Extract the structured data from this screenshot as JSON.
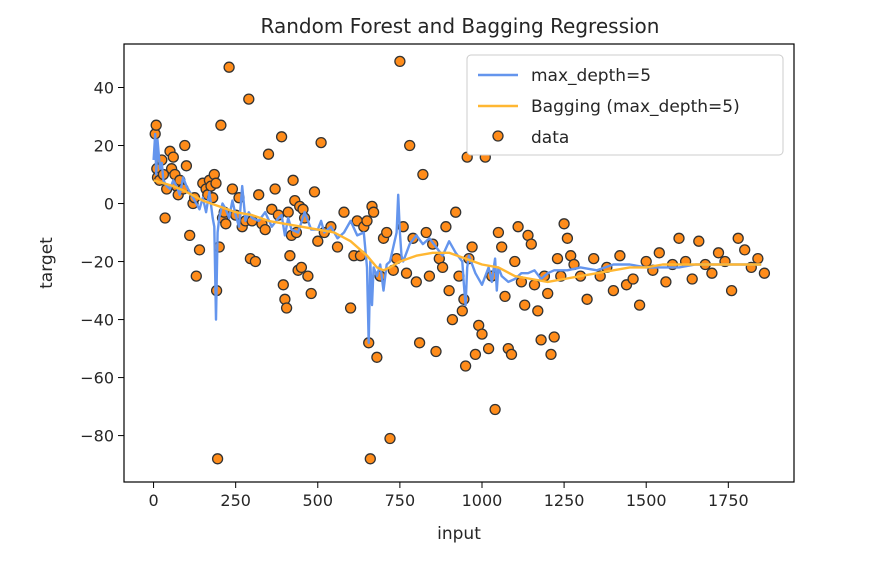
{
  "chart_data": {
    "type": "scatter",
    "title": "Random Forest and Bagging Regression",
    "xlabel": "input",
    "ylabel": "target",
    "xlim": [
      -90,
      1950
    ],
    "ylim": [
      -96,
      55
    ],
    "xticks": [
      0,
      250,
      500,
      750,
      1000,
      1250,
      1500,
      1750
    ],
    "yticks": [
      -80,
      -60,
      -40,
      -20,
      0,
      20,
      40
    ],
    "grid": false,
    "legend": {
      "placement": "top-right",
      "entries": [
        "max_depth=5",
        "Bagging (max_depth=5)",
        "data"
      ]
    },
    "series": [
      {
        "name": "max_depth=5",
        "kind": "line",
        "color": "#6495ED",
        "x": [
          0,
          5,
          8,
          12,
          15,
          20,
          25,
          30,
          40,
          50,
          60,
          70,
          80,
          90,
          100,
          110,
          120,
          130,
          140,
          150,
          160,
          170,
          180,
          185,
          190,
          195,
          200,
          210,
          220,
          230,
          240,
          250,
          260,
          270,
          280,
          290,
          300,
          320,
          340,
          360,
          380,
          390,
          400,
          410,
          420,
          440,
          460,
          480,
          500,
          510,
          520,
          540,
          560,
          580,
          600,
          620,
          640,
          650,
          655,
          660,
          665,
          670,
          680,
          690,
          700,
          710,
          720,
          730,
          740,
          745,
          750,
          755,
          760,
          780,
          800,
          820,
          840,
          860,
          880,
          900,
          920,
          940,
          945,
          950,
          955,
          960,
          980,
          1000,
          1020,
          1030,
          1040,
          1045,
          1050,
          1060,
          1080,
          1100,
          1120,
          1140,
          1160,
          1180,
          1200,
          1220,
          1240,
          1260,
          1300,
          1350,
          1400,
          1450,
          1500,
          1550,
          1600,
          1650,
          1700,
          1750,
          1800,
          1850
        ],
        "values": [
          15,
          24,
          10,
          22,
          18,
          12,
          14,
          8,
          6,
          5,
          8,
          6,
          3,
          9,
          6,
          4,
          2,
          0,
          -2,
          2,
          -3,
          4,
          -5,
          -8,
          -40,
          -10,
          -5,
          0,
          -2,
          -5,
          1,
          -4,
          -8,
          6,
          -6,
          -3,
          -5,
          -6,
          -3,
          -8,
          -5,
          -4,
          -11,
          -5,
          -9,
          -10,
          -3,
          -9,
          -9,
          -6,
          -10,
          -8,
          -12,
          -10,
          -6,
          -11,
          -10,
          -22,
          -48,
          -20,
          -35,
          -22,
          -25,
          -21,
          -30,
          -21,
          -20,
          -15,
          -10,
          3,
          -10,
          -18,
          -20,
          -14,
          -11,
          -14,
          -12,
          -15,
          -18,
          -13,
          -17,
          -20,
          -28,
          -35,
          -22,
          -18,
          -24,
          -28,
          -22,
          -27,
          -19,
          -30,
          -22,
          -25,
          -27,
          -26,
          -24,
          -24,
          -23,
          -26,
          -24,
          -23,
          -23,
          -23,
          -22,
          -23,
          -21,
          -21,
          -22,
          -22,
          -22,
          -21,
          -21,
          -21,
          -21,
          -21
        ]
      },
      {
        "name": "Bagging (max_depth=5)",
        "kind": "line",
        "color": "#FFB732",
        "x": [
          0,
          30,
          60,
          100,
          150,
          200,
          250,
          300,
          350,
          400,
          450,
          500,
          550,
          600,
          650,
          680,
          700,
          720,
          750,
          800,
          850,
          900,
          950,
          1000,
          1050,
          1100,
          1150,
          1200,
          1250,
          1300,
          1350,
          1400,
          1450,
          1500,
          1550,
          1600,
          1650,
          1700,
          1750,
          1800,
          1850
        ],
        "values": [
          8,
          7,
          6,
          4,
          1,
          -1,
          -3,
          -4,
          -6,
          -7,
          -8,
          -9,
          -10,
          -13,
          -18,
          -22,
          -23,
          -22,
          -20,
          -18,
          -17,
          -17,
          -19,
          -21,
          -22,
          -25,
          -26,
          -27,
          -26,
          -25,
          -24,
          -23,
          -22,
          -22,
          -21,
          -21,
          -21,
          -21,
          -21,
          -21,
          -21
        ]
      },
      {
        "name": "data",
        "kind": "scatter",
        "color": "#FF8C1A",
        "edge_color": "#333333",
        "points": [
          [
            5,
            24
          ],
          [
            8,
            27
          ],
          [
            10,
            12
          ],
          [
            12,
            9
          ],
          [
            18,
            8
          ],
          [
            25,
            15
          ],
          [
            30,
            10
          ],
          [
            35,
            -5
          ],
          [
            40,
            5
          ],
          [
            50,
            18
          ],
          [
            55,
            12
          ],
          [
            60,
            16
          ],
          [
            65,
            10
          ],
          [
            70,
            6
          ],
          [
            75,
            3
          ],
          [
            80,
            8
          ],
          [
            90,
            5
          ],
          [
            95,
            20
          ],
          [
            100,
            13
          ],
          [
            110,
            -11
          ],
          [
            120,
            0
          ],
          [
            125,
            2
          ],
          [
            130,
            -25
          ],
          [
            140,
            -16
          ],
          [
            150,
            7
          ],
          [
            160,
            5
          ],
          [
            165,
            3
          ],
          [
            170,
            8
          ],
          [
            175,
            6
          ],
          [
            180,
            2
          ],
          [
            185,
            10
          ],
          [
            190,
            7
          ],
          [
            192,
            -30
          ],
          [
            195,
            -88
          ],
          [
            200,
            -15
          ],
          [
            205,
            27
          ],
          [
            210,
            -5
          ],
          [
            215,
            -3
          ],
          [
            220,
            -7
          ],
          [
            230,
            47
          ],
          [
            240,
            5
          ],
          [
            250,
            -4
          ],
          [
            260,
            2
          ],
          [
            270,
            -8
          ],
          [
            280,
            -6
          ],
          [
            290,
            36
          ],
          [
            295,
            -19
          ],
          [
            300,
            -6
          ],
          [
            310,
            -20
          ],
          [
            320,
            3
          ],
          [
            330,
            -7
          ],
          [
            340,
            -9
          ],
          [
            350,
            17
          ],
          [
            360,
            -2
          ],
          [
            370,
            5
          ],
          [
            380,
            -4
          ],
          [
            390,
            23
          ],
          [
            395,
            -28
          ],
          [
            400,
            -33
          ],
          [
            405,
            -36
          ],
          [
            410,
            -3
          ],
          [
            415,
            -18
          ],
          [
            420,
            -11
          ],
          [
            425,
            8
          ],
          [
            430,
            1
          ],
          [
            435,
            -10
          ],
          [
            440,
            -23
          ],
          [
            445,
            -1
          ],
          [
            450,
            -22
          ],
          [
            455,
            -2
          ],
          [
            460,
            -5
          ],
          [
            470,
            -25
          ],
          [
            480,
            -31
          ],
          [
            490,
            4
          ],
          [
            500,
            -13
          ],
          [
            510,
            21
          ],
          [
            520,
            -10
          ],
          [
            540,
            -8
          ],
          [
            560,
            -15
          ],
          [
            580,
            -3
          ],
          [
            600,
            -36
          ],
          [
            610,
            -18
          ],
          [
            620,
            -6
          ],
          [
            630,
            -18
          ],
          [
            640,
            -8
          ],
          [
            650,
            -6
          ],
          [
            655,
            -48
          ],
          [
            660,
            -88
          ],
          [
            665,
            -1
          ],
          [
            670,
            -3
          ],
          [
            680,
            -53
          ],
          [
            690,
            -25
          ],
          [
            700,
            -12
          ],
          [
            710,
            -10
          ],
          [
            720,
            -81
          ],
          [
            730,
            -23
          ],
          [
            740,
            -19
          ],
          [
            750,
            49
          ],
          [
            760,
            -8
          ],
          [
            770,
            -24
          ],
          [
            780,
            20
          ],
          [
            790,
            -12
          ],
          [
            800,
            -27
          ],
          [
            810,
            -48
          ],
          [
            820,
            10
          ],
          [
            830,
            -10
          ],
          [
            840,
            -25
          ],
          [
            850,
            -14
          ],
          [
            860,
            -51
          ],
          [
            870,
            -19
          ],
          [
            880,
            -22
          ],
          [
            890,
            -8
          ],
          [
            900,
            -30
          ],
          [
            910,
            -40
          ],
          [
            920,
            -3
          ],
          [
            930,
            -25
          ],
          [
            940,
            -37
          ],
          [
            945,
            -33
          ],
          [
            950,
            -56
          ],
          [
            955,
            16
          ],
          [
            960,
            -19
          ],
          [
            970,
            -15
          ],
          [
            980,
            -52
          ],
          [
            990,
            -42
          ],
          [
            1000,
            -45
          ],
          [
            1010,
            16
          ],
          [
            1020,
            -50
          ],
          [
            1030,
            -25
          ],
          [
            1040,
            -71
          ],
          [
            1050,
            -10
          ],
          [
            1060,
            -15
          ],
          [
            1070,
            -32
          ],
          [
            1080,
            -50
          ],
          [
            1090,
            -52
          ],
          [
            1100,
            -20
          ],
          [
            1110,
            -8
          ],
          [
            1120,
            -27
          ],
          [
            1130,
            -35
          ],
          [
            1140,
            -11
          ],
          [
            1150,
            -14
          ],
          [
            1160,
            -28
          ],
          [
            1170,
            -37
          ],
          [
            1180,
            -47
          ],
          [
            1190,
            -25
          ],
          [
            1200,
            -31
          ],
          [
            1210,
            -52
          ],
          [
            1220,
            -46
          ],
          [
            1230,
            -19
          ],
          [
            1240,
            -25
          ],
          [
            1250,
            -7
          ],
          [
            1260,
            -12
          ],
          [
            1270,
            -18
          ],
          [
            1280,
            -21
          ],
          [
            1300,
            -25
          ],
          [
            1320,
            -33
          ],
          [
            1340,
            -19
          ],
          [
            1360,
            -25
          ],
          [
            1380,
            -22
          ],
          [
            1400,
            -30
          ],
          [
            1420,
            -18
          ],
          [
            1440,
            -28
          ],
          [
            1460,
            -26
          ],
          [
            1480,
            -35
          ],
          [
            1500,
            -20
          ],
          [
            1520,
            -23
          ],
          [
            1540,
            -17
          ],
          [
            1560,
            -27
          ],
          [
            1580,
            -21
          ],
          [
            1600,
            -12
          ],
          [
            1620,
            -20
          ],
          [
            1640,
            -26
          ],
          [
            1660,
            -13
          ],
          [
            1680,
            -21
          ],
          [
            1700,
            -24
          ],
          [
            1720,
            -17
          ],
          [
            1740,
            -20
          ],
          [
            1760,
            -30
          ],
          [
            1780,
            -12
          ],
          [
            1800,
            -16
          ],
          [
            1820,
            -22
          ],
          [
            1840,
            -19
          ],
          [
            1860,
            -24
          ]
        ]
      }
    ]
  }
}
